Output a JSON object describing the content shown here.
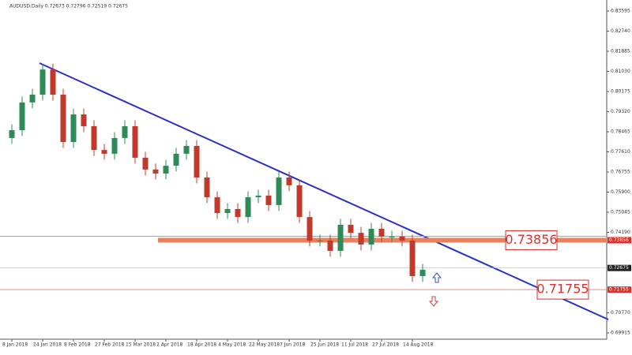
{
  "chart_data": {
    "type": "candlestick",
    "title": "AUDUSD,Daily 0.72673 0.72796 0.72519 0.72675",
    "categories": [
      "8 Jan 2018",
      null,
      null,
      "24 Jan 2018",
      null,
      null,
      "8 Feb 2018",
      null,
      null,
      "27 Feb 2018",
      null,
      null,
      "15 Mar 2018",
      null,
      null,
      "2 Apr 2018",
      null,
      null,
      "18 Apr 2018",
      null,
      null,
      "4 May 2018",
      null,
      null,
      "22 May 2018",
      null,
      null,
      "7 Jun 2018",
      null,
      null,
      "25 Jun 2018",
      null,
      null,
      "11 Jul 2018",
      null,
      null,
      "27 Jul 2018",
      null,
      null,
      "14 Aug 2018",
      null
    ],
    "open": [
      0.782,
      0.7853,
      0.7971,
      0.8004,
      0.8111,
      0.8004,
      0.7803,
      0.792,
      0.787,
      0.7769,
      0.7753,
      0.782,
      0.787,
      0.7736,
      0.7686,
      0.7669,
      0.7702,
      0.7753,
      0.7786,
      0.7652,
      0.7568,
      0.7501,
      0.7518,
      0.7484,
      0.7568,
      0.7575,
      0.7535,
      0.7652,
      0.7619,
      0.7484,
      0.7384,
      0.7384,
      0.734,
      0.7451,
      0.7417,
      0.7367,
      0.7434,
      0.7401,
      0.7401,
      0.7384,
      0.7233
    ],
    "high": [
      0.7878,
      0.7996,
      0.8029,
      0.8136,
      0.8136,
      0.8029,
      0.7945,
      0.7945,
      0.7895,
      0.7794,
      0.7845,
      0.7895,
      0.7895,
      0.7761,
      0.7711,
      0.7727,
      0.7778,
      0.7811,
      0.7811,
      0.7677,
      0.7593,
      0.7543,
      0.7543,
      0.7593,
      0.76,
      0.76,
      0.7677,
      0.7677,
      0.7644,
      0.7509,
      0.7409,
      0.7409,
      0.7476,
      0.7476,
      0.7442,
      0.7459,
      0.7459,
      0.7426,
      0.7426,
      0.7409,
      0.7285
    ],
    "low": [
      0.7795,
      0.7828,
      0.7946,
      0.7979,
      0.7979,
      0.7778,
      0.7778,
      0.7845,
      0.7744,
      0.7728,
      0.7728,
      0.7795,
      0.7711,
      0.7661,
      0.7644,
      0.7644,
      0.7677,
      0.7728,
      0.7627,
      0.7543,
      0.7476,
      0.7476,
      0.7459,
      0.7459,
      0.7543,
      0.751,
      0.751,
      0.7594,
      0.7459,
      0.7359,
      0.7359,
      0.7315,
      0.7315,
      0.7392,
      0.7342,
      0.7342,
      0.7376,
      0.7376,
      0.7359,
      0.7208,
      0.7208
    ],
    "close": [
      0.7853,
      0.7971,
      0.8004,
      0.8111,
      0.8004,
      0.7803,
      0.792,
      0.787,
      0.7769,
      0.7753,
      0.782,
      0.787,
      0.7736,
      0.7686,
      0.7669,
      0.7702,
      0.7753,
      0.7786,
      0.7652,
      0.7568,
      0.7501,
      0.7518,
      0.7484,
      0.7568,
      0.7575,
      0.7535,
      0.7652,
      0.7619,
      0.7484,
      0.7384,
      0.7384,
      0.734,
      0.7451,
      0.7417,
      0.7367,
      0.7434,
      0.7401,
      0.7401,
      0.7384,
      0.7233,
      0.726
    ],
    "up_color": "#2e8b57",
    "down_color": "#c0392b",
    "ylim": [
      0.6958,
      0.84064
    ],
    "yticks": [
      {
        "value": 0.83595,
        "label": "0.83595"
      },
      {
        "value": 0.8274,
        "label": "0.82740"
      },
      {
        "value": 0.81885,
        "label": "0.81885"
      },
      {
        "value": 0.8103,
        "label": "0.81030"
      },
      {
        "value": 0.80175,
        "label": "0.80175"
      },
      {
        "value": 0.7932,
        "label": "0.79320"
      },
      {
        "value": 0.78465,
        "label": "0.78465"
      },
      {
        "value": 0.7761,
        "label": "0.77610"
      },
      {
        "value": 0.76755,
        "label": "0.76755"
      },
      {
        "value": 0.759,
        "label": "0.75900"
      },
      {
        "value": 0.75045,
        "label": "0.75045"
      },
      {
        "value": 0.7419,
        "label": "0.74190"
      },
      {
        "value": 0.7077,
        "label": "0.70770"
      },
      {
        "value": 0.69915,
        "label": "0.69915"
      }
    ],
    "levels": [
      {
        "value": 0.73856,
        "label": "0.73856"
      },
      {
        "value": 0.71755,
        "label": "0.71755"
      }
    ],
    "price_line": {
      "value": 0.72675,
      "label": "0.72675"
    }
  }
}
